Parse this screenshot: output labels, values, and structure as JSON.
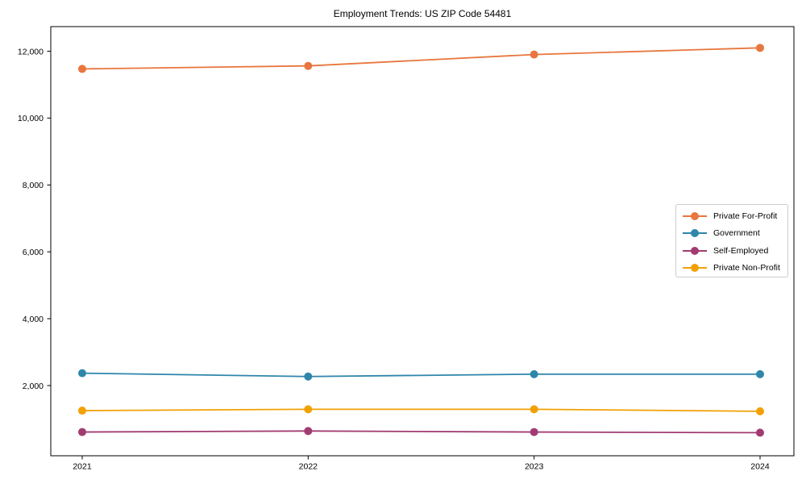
{
  "chart_data": {
    "type": "line",
    "title": "Employment Trends: US ZIP Code 54481",
    "categories": [
      "2021",
      "2022",
      "2023",
      "2024"
    ],
    "series": [
      {
        "name": "Private For-Profit",
        "color": "#e8763e",
        "values": [
          11470,
          11560,
          11900,
          12100
        ]
      },
      {
        "name": "Government",
        "color": "#2e86ab",
        "values": [
          2370,
          2270,
          2340,
          2340
        ]
      },
      {
        "name": "Self-Employed",
        "color": "#a23b72",
        "values": [
          610,
          640,
          610,
          590
        ]
      },
      {
        "name": "Private Non-Profit",
        "color": "#f2a104",
        "values": [
          1250,
          1290,
          1290,
          1230
        ]
      }
    ],
    "xlabel": "",
    "ylabel": "",
    "ylim": [
      -100,
      12735
    ],
    "yticks": [
      2000,
      4000,
      6000,
      8000,
      10000,
      12000
    ],
    "ytick_labels": [
      "2,000",
      "4,000",
      "6,000",
      "8,000",
      "10,000",
      "12,000"
    ],
    "grid": false,
    "marker": "circle",
    "legend": {
      "position": "right-center",
      "entries": [
        "Private For-Profit",
        "Government",
        "Self-Employed",
        "Private Non-Profit"
      ]
    }
  }
}
